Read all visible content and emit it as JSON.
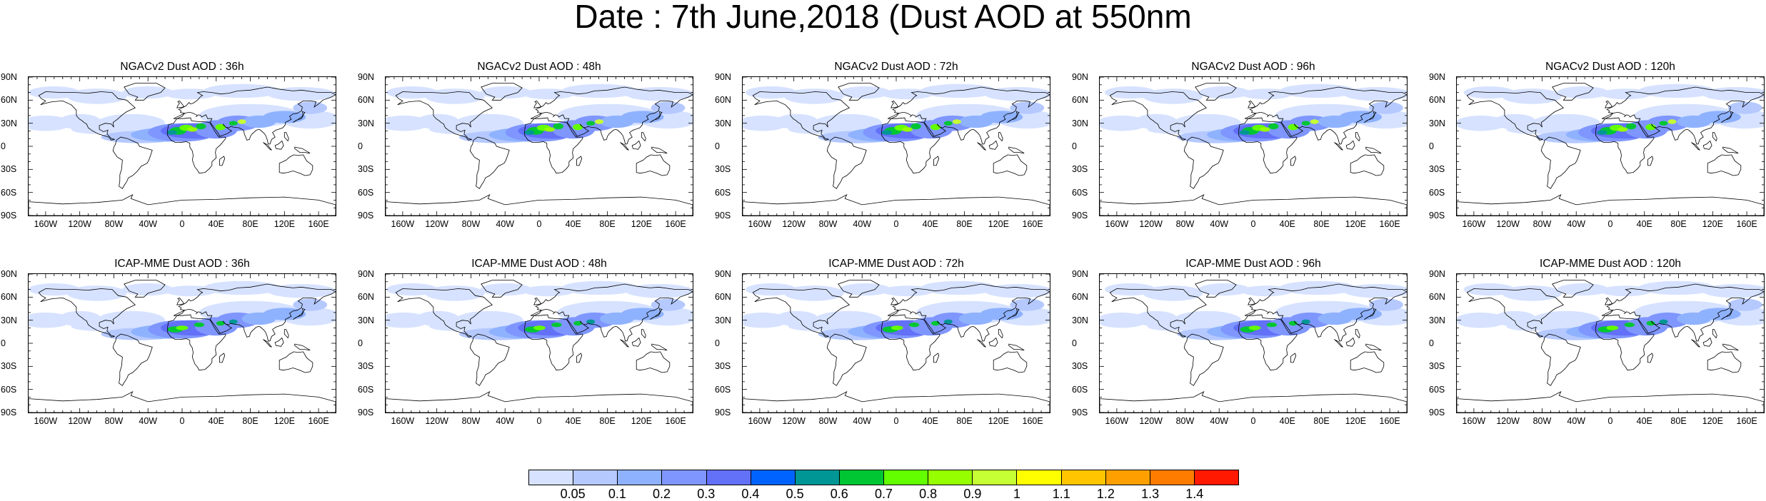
{
  "title": "Date : 7th June,2018 (Dust AOD at 550nm",
  "lat_ticks": [
    "90N",
    "60N",
    "30N",
    "0",
    "30S",
    "60S",
    "90S"
  ],
  "lon_ticks": [
    "160W",
    "120W",
    "80W",
    "40W",
    "0",
    "40E",
    "80E",
    "120E",
    "160E"
  ],
  "panels": [
    {
      "title": "NGACv2 Dust AOD : 36h",
      "model": "NGACv2",
      "lead_h": 36
    },
    {
      "title": "NGACv2 Dust AOD : 48h",
      "model": "NGACv2",
      "lead_h": 48
    },
    {
      "title": "NGACv2 Dust AOD : 72h",
      "model": "NGACv2",
      "lead_h": 72
    },
    {
      "title": "NGACv2 Dust AOD : 96h",
      "model": "NGACv2",
      "lead_h": 96
    },
    {
      "title": "NGACv2 Dust AOD : 120h",
      "model": "NGACv2",
      "lead_h": 120
    },
    {
      "title": "ICAP-MME Dust AOD : 36h",
      "model": "ICAP-MME",
      "lead_h": 36
    },
    {
      "title": "ICAP-MME Dust AOD : 48h",
      "model": "ICAP-MME",
      "lead_h": 48
    },
    {
      "title": "ICAP-MME Dust AOD : 72h",
      "model": "ICAP-MME",
      "lead_h": 72
    },
    {
      "title": "ICAP-MME Dust AOD : 96h",
      "model": "ICAP-MME",
      "lead_h": 96
    },
    {
      "title": "ICAP-MME Dust AOD : 120h",
      "model": "ICAP-MME",
      "lead_h": 120
    }
  ],
  "colorbar": {
    "labels": [
      "0.05",
      "0.1",
      "0.2",
      "0.3",
      "0.4",
      "0.5",
      "0.6",
      "0.7",
      "0.8",
      "0.9",
      "1",
      "1.1",
      "1.2",
      "1.3",
      "1.4"
    ],
    "colors": [
      "#ffffff",
      "#d6e2ff",
      "#b5c9ff",
      "#8fb2ff",
      "#7f96ff",
      "#6370f8",
      "#0063ff",
      "#009696",
      "#00c633",
      "#63ff00",
      "#96ff00",
      "#c6ff33",
      "#ffff00",
      "#ffc600",
      "#ffa000",
      "#ff7c00",
      "#ff1900"
    ]
  }
}
